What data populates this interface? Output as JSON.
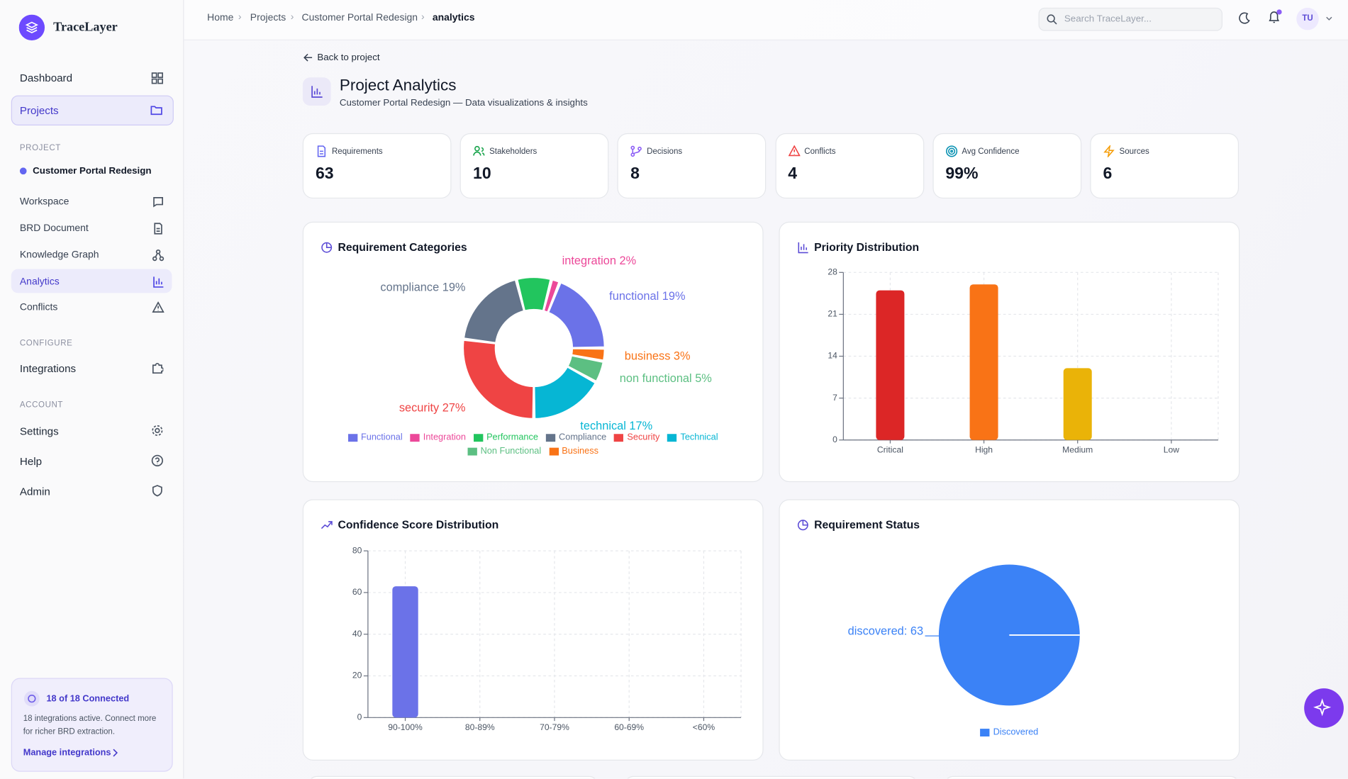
{
  "sidebar": {
    "brand": "TraceLayer",
    "nav": [
      "Dashboard",
      "Projects"
    ],
    "project_heading": "PROJECT",
    "project": "Customer Portal Redesign",
    "project_nav": [
      "Workspace",
      "BRD Document",
      "Knowledge Graph",
      "Analytics",
      "Conflicts"
    ],
    "configure_heading": "CONFIGURE",
    "configure_nav": [
      "Integrations"
    ],
    "account_heading": "ACCOUNT",
    "account_nav": [
      "Settings",
      "Help",
      "Admin"
    ],
    "integrations_card": {
      "title": "18 of 18 Connected",
      "text": "18 integrations active. Connect more for richer BRD extraction.",
      "link": "Manage integrations"
    }
  },
  "header": {
    "breadcrumbs": [
      "Home",
      "Projects",
      "Customer Portal Redesign",
      "analytics"
    ],
    "search_placeholder": "Search TraceLayer...",
    "avatar": "TU"
  },
  "page": {
    "back": "Back to project",
    "title": "Project Analytics",
    "subtitle": "Customer Portal Redesign — Data visualizations & insights"
  },
  "stats": [
    {
      "label": "Requirements",
      "value": 63
    },
    {
      "label": "Stakeholders",
      "value": 10
    },
    {
      "label": "Decisions",
      "value": 8
    },
    {
      "label": "Conflicts",
      "value": 4
    },
    {
      "label": "Avg Confidence",
      "value": "99%"
    },
    {
      "label": "Sources",
      "value": 6
    }
  ],
  "chart_data": [
    {
      "type": "donut",
      "title": "Requirement Categories",
      "categories": [
        "Functional",
        "Integration",
        "Performance",
        "Compliance",
        "Security",
        "Technical",
        "Non Functional",
        "Business"
      ],
      "values": [
        19,
        2,
        8,
        19,
        27,
        17,
        5,
        3
      ],
      "value_labels": [
        "functional 19%",
        "integration 2%",
        null,
        "compliance 19%",
        "security 27%",
        "technical 17%",
        "non functional 5%",
        "business 3%"
      ],
      "colors": [
        "#6b72e8",
        "#ec4899",
        "#22c55e",
        "#64748b",
        "#ef4444",
        "#06b6d4",
        "#5cbf82",
        "#f97316"
      ],
      "legend": "bottom"
    },
    {
      "type": "bar",
      "title": "Priority Distribution",
      "categories": [
        "Critical",
        "High",
        "Medium",
        "Low"
      ],
      "values": [
        25,
        26,
        12,
        0
      ],
      "colors": [
        "#dc2626",
        "#f97316",
        "#eab308",
        "#22c55e"
      ],
      "ylim": [
        0,
        28
      ],
      "yticks": [
        0,
        7,
        14,
        21,
        28
      ],
      "grid": true
    },
    {
      "type": "bar",
      "title": "Confidence Score Distribution",
      "categories": [
        "90-100%",
        "80-89%",
        "70-79%",
        "60-69%",
        "<60%"
      ],
      "values": [
        63,
        0,
        0,
        0,
        0
      ],
      "color": "#6b72e8",
      "ylim": [
        0,
        80
      ],
      "yticks": [
        0,
        20,
        40,
        60,
        80
      ],
      "grid": true
    },
    {
      "type": "pie",
      "title": "Requirement Status",
      "categories": [
        "Discovered"
      ],
      "values": [
        63
      ],
      "value_labels": [
        "discovered: 63"
      ],
      "colors": [
        "#3b82f6"
      ],
      "legend": "bottom"
    }
  ]
}
